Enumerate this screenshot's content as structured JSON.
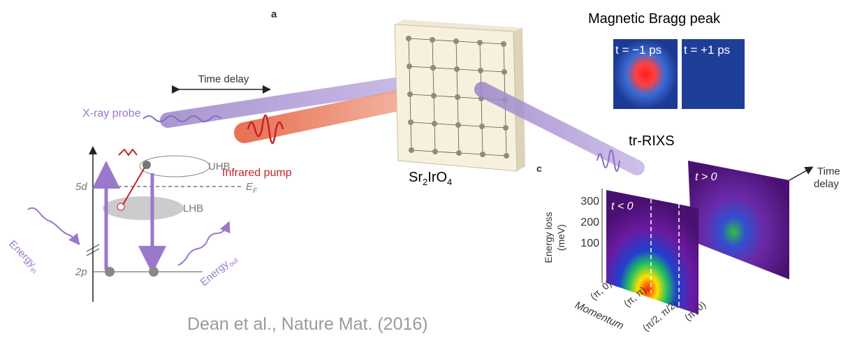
{
  "panel_a": {
    "label": "a",
    "time_delay": "Time delay",
    "xray_probe": "X-ray probe",
    "infrared_pump": "Infrared pump",
    "sample": {
      "base": "Sr",
      "sub1": "2",
      "mid": "IrO",
      "sub2": "4"
    }
  },
  "bragg": {
    "title": "Magnetic Bragg peak",
    "frames": [
      "t = −1 ps",
      "t = +1 ps"
    ]
  },
  "tr_rixs": "tr-RIXS",
  "energy_diagram": {
    "uhb": "UHB",
    "lhb": "LHB",
    "level_5d": "5d",
    "fermi": {
      "base": "E",
      "sub": "F"
    },
    "level_2p": "2p",
    "energy_in": {
      "base": "Energy",
      "sub": "in"
    },
    "energy_out": {
      "base": "Energy",
      "sub": "out"
    }
  },
  "panel_c": {
    "label": "c",
    "axis_title": [
      "Energy loss",
      "(meV)"
    ],
    "ticks": [
      "300",
      "200",
      "100"
    ],
    "time_delay": [
      "Time",
      "delay"
    ],
    "frames": [
      "t < 0",
      "t > 0"
    ],
    "momentum_labels": [
      "(π, 0)",
      "(π, π)",
      "(π/2, π/2)",
      "(π, 0)"
    ],
    "momentum_title": "Momentum"
  },
  "citation": "Dean et al., Nature Mat. (2016)"
}
